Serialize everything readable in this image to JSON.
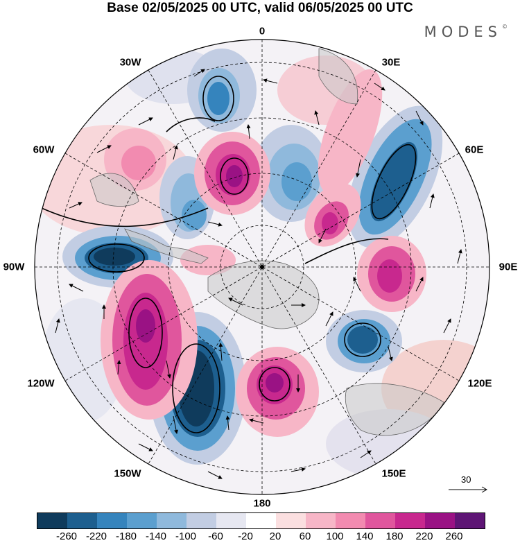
{
  "title": "Base 02/05/2025 00 UTC, valid 06/05/2025 00 UTC",
  "brand": "MODES",
  "brand_mark": "©",
  "longitude_labels": {
    "lon_0": "0",
    "lon_30e": "30E",
    "lon_60e": "60E",
    "lon_90e": "90E",
    "lon_120e": "120E",
    "lon_150e": "150E",
    "lon_180": "180",
    "lon_150w": "150W",
    "lon_120w": "120W",
    "lon_90w": "90W",
    "lon_60w": "60W",
    "lon_30w": "30W"
  },
  "reference_vector_label": "30",
  "colorbar": {
    "colors": [
      "#0f3b5c",
      "#1d5f8f",
      "#3584bd",
      "#5b9fcf",
      "#8fb9dc",
      "#c2cde3",
      "#e6e7f1",
      "#ffffff",
      "#fbdfe0",
      "#f7b6c7",
      "#f28bb0",
      "#e0569d",
      "#c8288e",
      "#9a1284",
      "#5e1575"
    ],
    "tick_labels": [
      "-260",
      "-220",
      "-180",
      "-140",
      "-100",
      "-60",
      "-20",
      "20",
      "60",
      "100",
      "140",
      "180",
      "220",
      "260"
    ]
  },
  "colors": {
    "land_outline": "#666666",
    "land_fill": "#bdbdbd",
    "contour": "#000000"
  }
}
